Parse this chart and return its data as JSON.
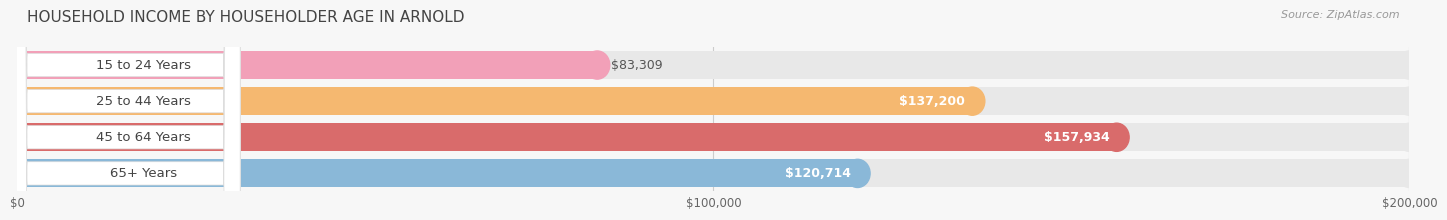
{
  "title": "HOUSEHOLD INCOME BY HOUSEHOLDER AGE IN ARNOLD",
  "source": "Source: ZipAtlas.com",
  "categories": [
    "15 to 24 Years",
    "25 to 44 Years",
    "45 to 64 Years",
    "65+ Years"
  ],
  "values": [
    83309,
    137200,
    157934,
    120714
  ],
  "bar_colors": [
    "#f2a0b8",
    "#f5b870",
    "#d96b6b",
    "#8ab8d8"
  ],
  "bar_bg_color": "#e8e8e8",
  "value_labels": [
    "$83,309",
    "$137,200",
    "$157,934",
    "$120,714"
  ],
  "value_label_outside": [
    true,
    false,
    false,
    false
  ],
  "xmax": 200000,
  "xticks": [
    0,
    100000,
    200000
  ],
  "xtick_labels": [
    "$0",
    "$100,000",
    "$200,000"
  ],
  "title_fontsize": 11,
  "source_fontsize": 8,
  "label_fontsize": 9.5,
  "value_fontsize": 9,
  "background_color": "#f7f7f7",
  "bar_height": 0.78,
  "bar_gap": 0.1
}
